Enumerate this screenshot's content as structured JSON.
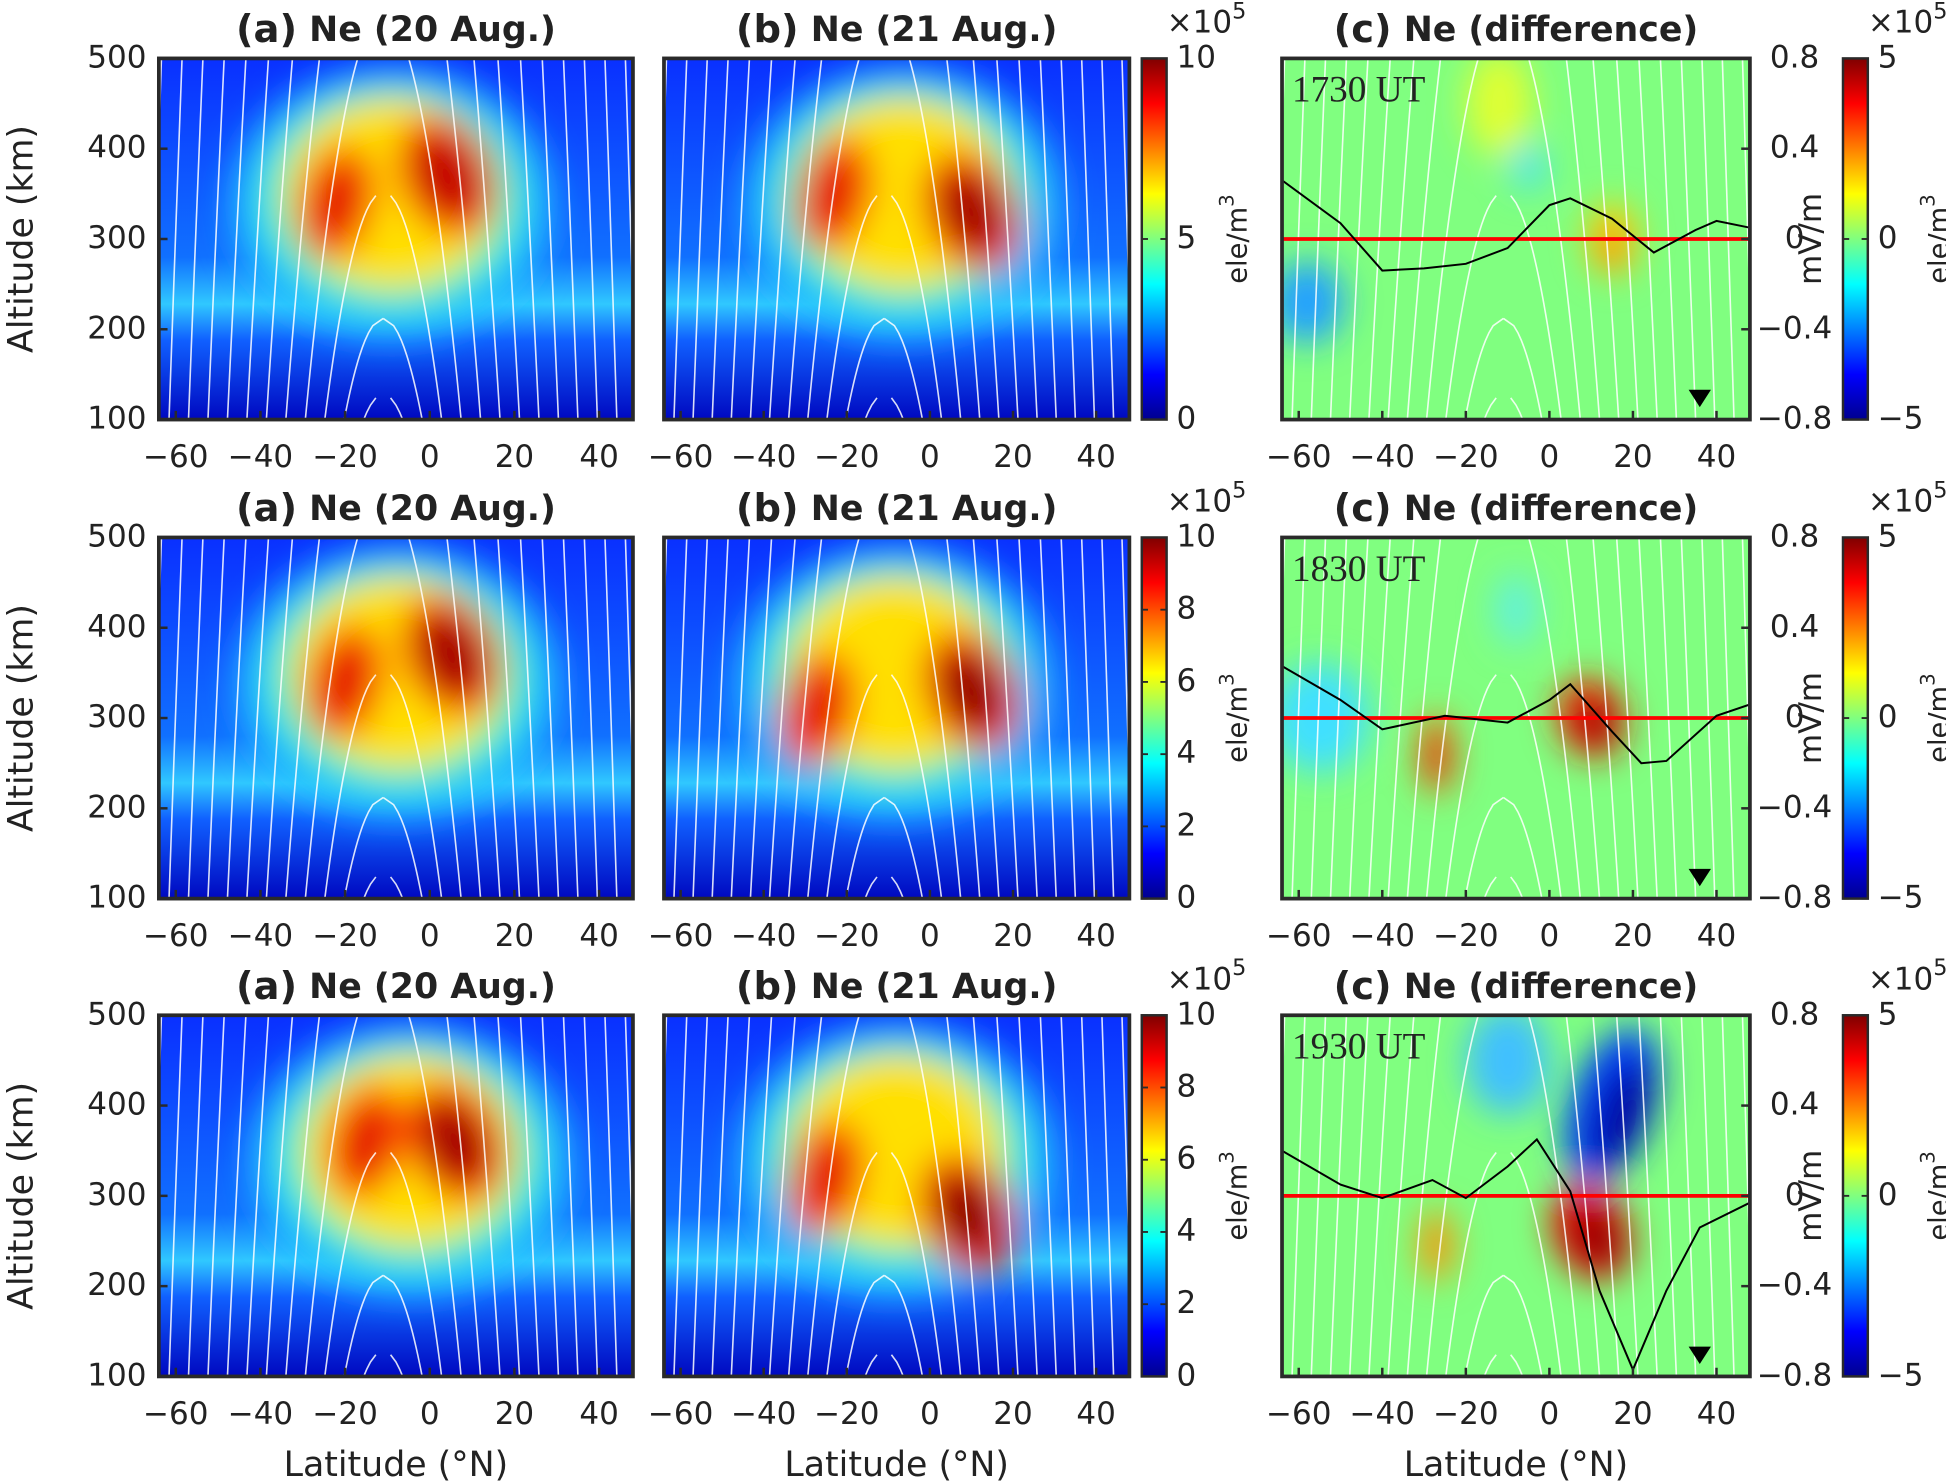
{
  "chart_data": [
    {
      "type": "heatmap",
      "label": "(a)",
      "title": "Ne (20 Aug.)",
      "xlim": [
        -64,
        48
      ],
      "xticks": [
        {
          "value": -60,
          "label": "−60"
        },
        {
          "value": -40,
          "label": "−40"
        },
        {
          "value": -20,
          "label": "−20"
        },
        0,
        20,
        40
      ],
      "ylim": [
        100,
        500
      ],
      "yticks": [
        100,
        200,
        300,
        400,
        500
      ],
      "ylabel": "Altitude (km)"
    },
    {
      "type": "heatmap",
      "label": "(b)",
      "title": "Ne (21 Aug.)",
      "xlim": [
        -64,
        48
      ],
      "xticks": [
        {
          "value": -60,
          "label": "−60"
        },
        {
          "value": -40,
          "label": "−40"
        },
        {
          "value": -20,
          "label": "−20"
        },
        0,
        20,
        40
      ],
      "ylim": [
        100,
        500
      ],
      "colorbar": {
        "lim": [
          0,
          10
        ],
        "ticks": [
          0,
          5,
          10
        ],
        "multiplier": "×10",
        "multiplier_exponent": "5",
        "label": "ele/m",
        "label_exponent": "3"
      }
    },
    {
      "type": "heatmap",
      "label": "(c)",
      "title": "Ne (difference)",
      "annotation": "1730 UT",
      "xlim": [
        -64,
        48
      ],
      "xticks": [
        {
          "value": -60,
          "label": "−60"
        },
        {
          "value": -40,
          "label": "−40"
        },
        {
          "value": -20,
          "label": "−20"
        },
        0,
        20,
        40
      ],
      "ylim": [
        100,
        500
      ],
      "y2lim": [
        -0.8,
        0.8
      ],
      "y2ticks": [
        {
          "value": -0.8,
          "label": "−0.8"
        },
        {
          "value": -0.4,
          "label": "−0.4"
        },
        0,
        0.4,
        0.8
      ],
      "y2label": "mV/m",
      "reference_line": {
        "value": 0,
        "color": "#ff0000"
      },
      "series": [
        {
          "axis": "y2",
          "color": "#000000",
          "x": [
            -64,
            -50,
            -40,
            -30,
            -20,
            -10,
            0,
            5,
            15,
            25,
            35,
            40,
            48
          ],
          "values": [
            0.26,
            0.07,
            -0.14,
            -0.13,
            -0.11,
            -0.04,
            0.15,
            0.18,
            0.09,
            -0.06,
            0.04,
            0.08,
            0.05
          ]
        }
      ],
      "colorbar": {
        "lim": [
          -5,
          5
        ],
        "ticks": [
          {
            "value": -5,
            "label": "−5"
          },
          0,
          5
        ],
        "multiplier": "×10",
        "multiplier_exponent": "5",
        "label": "ele/m",
        "label_exponent": "3"
      }
    },
    {
      "type": "heatmap",
      "label": "(a)",
      "title": "Ne (20 Aug.)",
      "xlim": [
        -64,
        48
      ],
      "xticks": [
        {
          "value": -60,
          "label": "−60"
        },
        {
          "value": -40,
          "label": "−40"
        },
        {
          "value": -20,
          "label": "−20"
        },
        0,
        20,
        40
      ],
      "ylim": [
        100,
        500
      ],
      "yticks": [
        100,
        200,
        300,
        400,
        500
      ],
      "ylabel": "Altitude (km)"
    },
    {
      "type": "heatmap",
      "label": "(b)",
      "title": "Ne (21 Aug.)",
      "xlim": [
        -64,
        48
      ],
      "xticks": [
        {
          "value": -60,
          "label": "−60"
        },
        {
          "value": -40,
          "label": "−40"
        },
        {
          "value": -20,
          "label": "−20"
        },
        0,
        20,
        40
      ],
      "ylim": [
        100,
        500
      ],
      "colorbar": {
        "lim": [
          0,
          10
        ],
        "ticks": [
          0,
          2,
          4,
          6,
          8,
          10
        ],
        "multiplier": "×10",
        "multiplier_exponent": "5",
        "label": "ele/m",
        "label_exponent": "3"
      }
    },
    {
      "type": "heatmap",
      "label": "(c)",
      "title": "Ne (difference)",
      "annotation": "1830 UT",
      "xlim": [
        -64,
        48
      ],
      "xticks": [
        {
          "value": -60,
          "label": "−60"
        },
        {
          "value": -40,
          "label": "−40"
        },
        {
          "value": -20,
          "label": "−20"
        },
        0,
        20,
        40
      ],
      "ylim": [
        100,
        500
      ],
      "y2lim": [
        -0.8,
        0.8
      ],
      "y2ticks": [
        {
          "value": -0.8,
          "label": "−0.8"
        },
        {
          "value": -0.4,
          "label": "−0.4"
        },
        0,
        0.4,
        0.8
      ],
      "y2label": "mV/m",
      "reference_line": {
        "value": 0,
        "color": "#ff0000"
      },
      "series": [
        {
          "axis": "y2",
          "color": "#000000",
          "x": [
            -64,
            -50,
            -40,
            -25,
            -10,
            0,
            5,
            15,
            22,
            28,
            40,
            48
          ],
          "values": [
            0.23,
            0.08,
            -0.05,
            0.01,
            -0.02,
            0.08,
            0.15,
            -0.06,
            -0.2,
            -0.19,
            0.01,
            0.06
          ]
        }
      ],
      "colorbar": {
        "lim": [
          -5,
          5
        ],
        "ticks": [
          {
            "value": -5,
            "label": "−5"
          },
          0,
          5
        ],
        "multiplier": "×10",
        "multiplier_exponent": "5",
        "label": "ele/m",
        "label_exponent": "3"
      }
    },
    {
      "type": "heatmap",
      "label": "(a)",
      "title": "Ne (20 Aug.)",
      "xlim": [
        -64,
        48
      ],
      "xticks": [
        {
          "value": -60,
          "label": "−60"
        },
        {
          "value": -40,
          "label": "−40"
        },
        {
          "value": -20,
          "label": "−20"
        },
        0,
        20,
        40
      ],
      "ylim": [
        100,
        500
      ],
      "yticks": [
        100,
        200,
        300,
        400,
        500
      ],
      "ylabel": "Altitude (km)",
      "xlabel": "Latitude (°N)"
    },
    {
      "type": "heatmap",
      "label": "(b)",
      "title": "Ne (21 Aug.)",
      "xlim": [
        -64,
        48
      ],
      "xticks": [
        {
          "value": -60,
          "label": "−60"
        },
        {
          "value": -40,
          "label": "−40"
        },
        {
          "value": -20,
          "label": "−20"
        },
        0,
        20,
        40
      ],
      "ylim": [
        100,
        500
      ],
      "xlabel": "Latitude (°N)",
      "colorbar": {
        "lim": [
          0,
          10
        ],
        "ticks": [
          0,
          2,
          4,
          6,
          8,
          10
        ],
        "multiplier": "×10",
        "multiplier_exponent": "5",
        "label": "ele/m",
        "label_exponent": "3"
      }
    },
    {
      "type": "heatmap",
      "label": "(c)",
      "title": "Ne (difference)",
      "annotation": "1930 UT",
      "xlim": [
        -64,
        48
      ],
      "xticks": [
        {
          "value": -60,
          "label": "−60"
        },
        {
          "value": -40,
          "label": "−40"
        },
        {
          "value": -20,
          "label": "−20"
        },
        0,
        20,
        40
      ],
      "ylim": [
        100,
        500
      ],
      "xlabel": "Latitude (°N)",
      "y2lim": [
        -0.8,
        0.8
      ],
      "y2ticks": [
        {
          "value": -0.8,
          "label": "−0.8"
        },
        {
          "value": -0.4,
          "label": "−0.4"
        },
        0,
        0.4,
        0.8
      ],
      "y2label": "mV/m",
      "reference_line": {
        "value": 0,
        "color": "#ff0000"
      },
      "series": [
        {
          "axis": "y2",
          "color": "#000000",
          "x": [
            -64,
            -50,
            -40,
            -28,
            -20,
            -10,
            -3,
            5,
            12,
            20,
            28,
            36,
            48
          ],
          "values": [
            0.2,
            0.05,
            -0.01,
            0.07,
            -0.01,
            0.13,
            0.25,
            0.02,
            -0.42,
            -0.77,
            -0.42,
            -0.14,
            -0.03
          ]
        }
      ],
      "colorbar": {
        "lim": [
          -5,
          5
        ],
        "ticks": [
          {
            "value": -5,
            "label": "−5"
          },
          0,
          5
        ],
        "multiplier": "×10",
        "multiplier_exponent": "5",
        "label": "ele/m",
        "label_exponent": "3"
      }
    }
  ]
}
